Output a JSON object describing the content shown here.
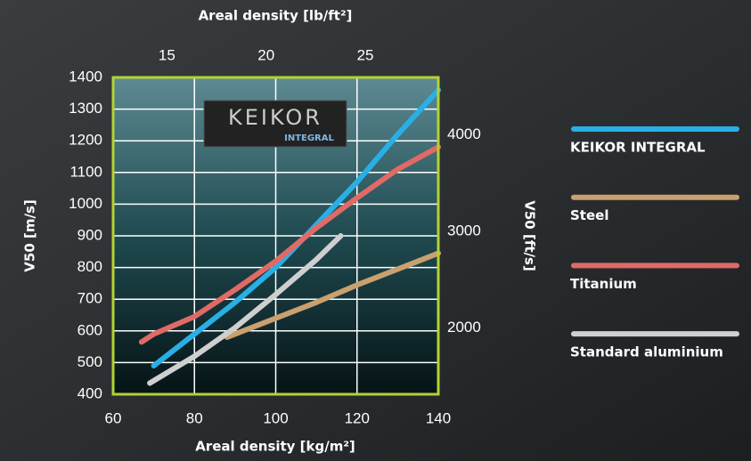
{
  "chart_data": {
    "type": "line",
    "xlabel": "Areal density [kg/m²]",
    "x2label": "Areal density [lb/ft²]",
    "ylabel": "V50 [m/s]",
    "y2label": "V50 [ft/s]",
    "logo": {
      "text": "KEIKOR",
      "subtext": "INTEGRAL"
    },
    "xlim": [
      60,
      140
    ],
    "xticks": [
      60,
      80,
      100,
      120,
      140
    ],
    "x2lim": [
      12.29,
      28.68
    ],
    "x2ticks": [
      15,
      20,
      25
    ],
    "ylim": [
      400,
      1400
    ],
    "yticks": [
      400,
      500,
      600,
      700,
      800,
      900,
      1000,
      1100,
      1200,
      1300,
      1400
    ],
    "y2lim": [
      1312,
      4593
    ],
    "y2ticks": [
      2000,
      3000,
      4000
    ],
    "grid": true,
    "series": [
      {
        "name": "KEIKOR INTEGRAL",
        "color": "#2aaee6",
        "x": [
          70,
          80,
          90,
          100,
          110,
          120,
          130,
          140
        ],
        "values": [
          490,
          590,
          690,
          800,
          935,
          1070,
          1220,
          1360
        ]
      },
      {
        "name": "Steel",
        "color": "#c9a06e",
        "x": [
          88,
          100,
          110,
          120,
          130,
          140
        ],
        "values": [
          580,
          640,
          690,
          745,
          795,
          845
        ]
      },
      {
        "name": "Titanium",
        "color": "#e06a66",
        "x": [
          67,
          70,
          80,
          90,
          100,
          110,
          120,
          130,
          140
        ],
        "values": [
          565,
          590,
          645,
          730,
          820,
          925,
          1020,
          1110,
          1180
        ]
      },
      {
        "name": "Standard aluminium",
        "color": "#cfcfcf",
        "x": [
          69,
          80,
          90,
          100,
          110,
          116
        ],
        "values": [
          435,
          520,
          610,
          715,
          825,
          900
        ]
      }
    ]
  }
}
